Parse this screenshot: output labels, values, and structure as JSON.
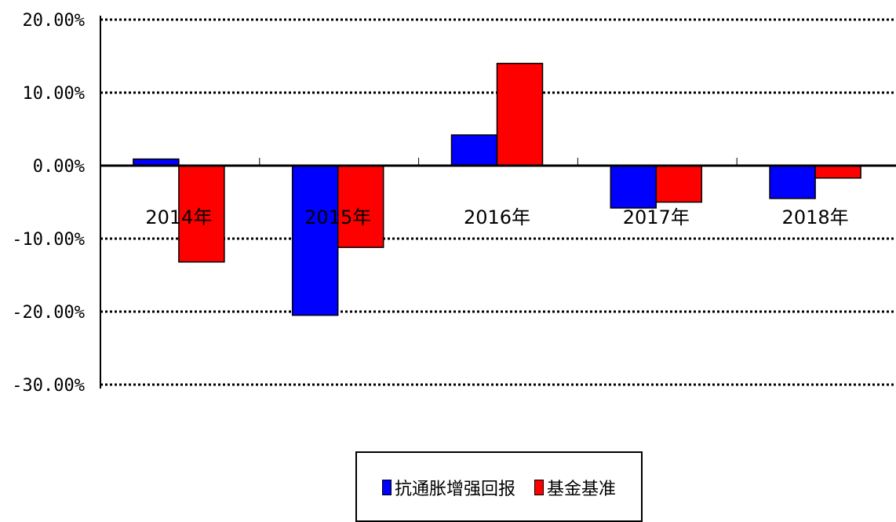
{
  "chart_data": {
    "type": "bar",
    "categories": [
      "2014年",
      "2015年",
      "2016年",
      "2017年",
      "2018年"
    ],
    "series": [
      {
        "name": "抗通胀增强回报",
        "color": "#0000ff",
        "values": [
          0.9,
          -20.5,
          4.2,
          -5.8,
          -4.5
        ]
      },
      {
        "name": "基金基准",
        "color": "#ff0000",
        "values": [
          -13.2,
          -11.2,
          14.0,
          -5.0,
          -1.7
        ]
      }
    ],
    "yticks": [
      "20.00%",
      "10.00%",
      "0.00%",
      "-10.00%",
      "-20.00%",
      "-30.00%"
    ],
    "ylim": [
      -30,
      20
    ],
    "grid": true,
    "legend_position": "bottom"
  }
}
